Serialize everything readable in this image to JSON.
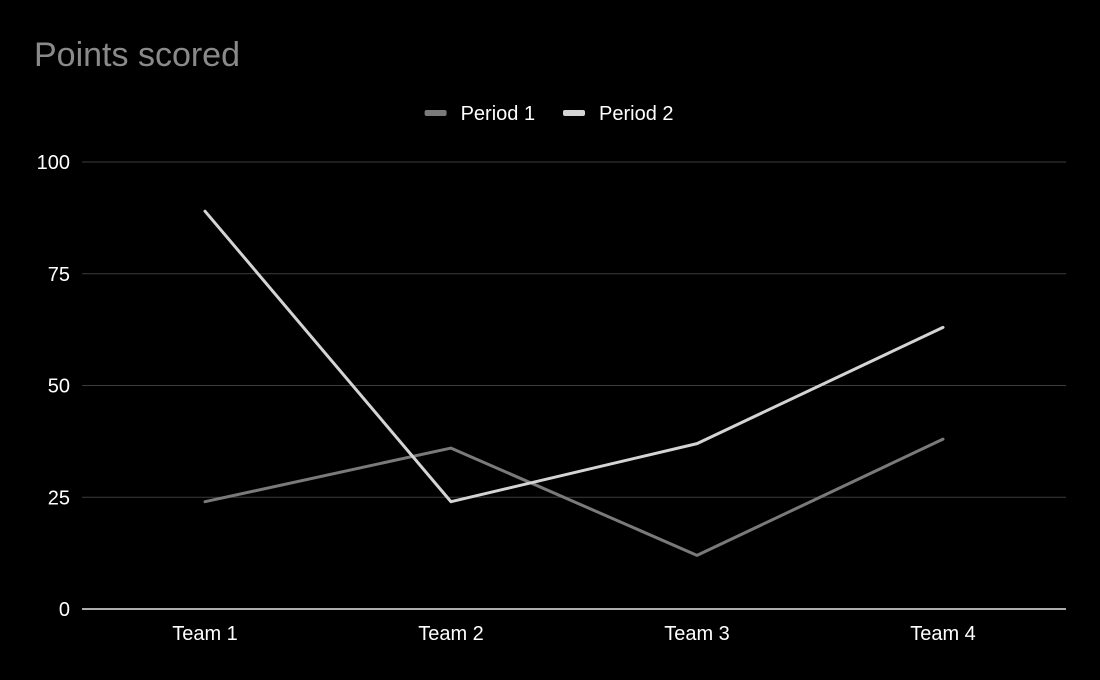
{
  "chart_data": {
    "type": "line",
    "title": "Points scored",
    "categories": [
      "Team 1",
      "Team 2",
      "Team 3",
      "Team 4"
    ],
    "series": [
      {
        "name": "Period 1",
        "values": [
          24,
          36,
          12,
          38
        ],
        "color": "#7a7a7a"
      },
      {
        "name": "Period 2",
        "values": [
          89,
          24,
          37,
          63
        ],
        "color": "#d4d4d4"
      }
    ],
    "xlabel": "",
    "ylabel": "",
    "ylim": [
      0,
      100
    ],
    "yticks": [
      0,
      25,
      50,
      75,
      100
    ],
    "grid": true,
    "legend_position": "top-center",
    "colors": {
      "background": "#000000",
      "title": "#8a8a8a",
      "gridline": "#3c3c3c",
      "axis_line": "#e6e6e6",
      "text": "#ffffff"
    }
  }
}
